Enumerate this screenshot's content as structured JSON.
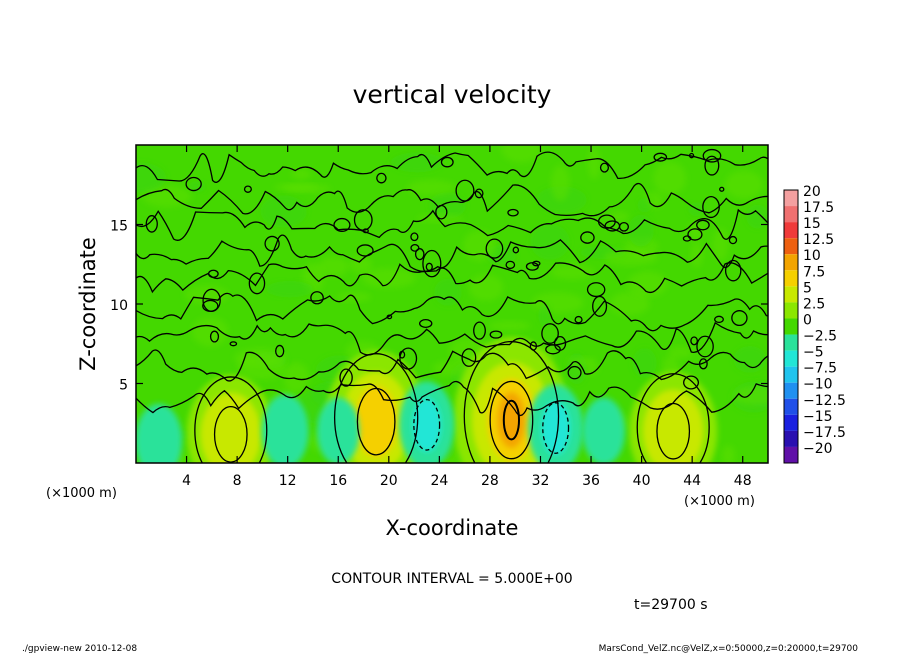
{
  "chart_data": {
    "type": "heatmap",
    "title": "vertical velocity",
    "xlabel": "X-coordinate",
    "ylabel": "Z-coordinate",
    "x_unit": "(×1000 m)",
    "y_unit": "(×1000 m)",
    "xlim": [
      0,
      50
    ],
    "ylim": [
      0,
      20
    ],
    "x_ticks": [
      4,
      8,
      12,
      16,
      20,
      24,
      28,
      32,
      36,
      40,
      44,
      48
    ],
    "y_ticks": [
      5,
      10,
      15
    ],
    "contour_interval_label": "CONTOUR INTERVAL = 5.000E+00",
    "time_label": "t=29700 s",
    "colorbar": {
      "labels": [
        "20",
        "17.5",
        "15",
        "12.5",
        "10",
        "7.5",
        "5",
        "2.5",
        "0",
        "−2.5",
        "−5",
        "−7.5",
        "−10",
        "−12.5",
        "−15",
        "−17.5",
        "−20"
      ],
      "colors": [
        "#f4a0a0",
        "#f07070",
        "#f03a3a",
        "#ee6010",
        "#f3a400",
        "#f5d000",
        "#c8e800",
        "#8be600",
        "#44d800",
        "#2ae29a",
        "#22e6d6",
        "#20c4ee",
        "#2090f0",
        "#2050e8",
        "#1a20e0",
        "#2a10b0",
        "#6010a8"
      ]
    },
    "features": [
      {
        "kind": "updraft",
        "x": 7.5,
        "z": 1.8,
        "w": 6
      },
      {
        "kind": "updraft",
        "x": 19.0,
        "z": 2.6,
        "w": 9
      },
      {
        "kind": "updraft",
        "x": 29.7,
        "z": 2.7,
        "w": 12
      },
      {
        "kind": "updraft",
        "x": 42.5,
        "z": 2.0,
        "w": 6
      },
      {
        "kind": "downdraft",
        "x": 1.8,
        "z": 1.4,
        "w": -4
      },
      {
        "kind": "downdraft",
        "x": 11.8,
        "z": 2.0,
        "w": -4
      },
      {
        "kind": "downdraft",
        "x": 16.0,
        "z": 2.0,
        "w": -3
      },
      {
        "kind": "downdraft",
        "x": 23.0,
        "z": 2.4,
        "w": -6
      },
      {
        "kind": "downdraft",
        "x": 33.2,
        "z": 2.2,
        "w": -6
      },
      {
        "kind": "downdraft",
        "x": 37.0,
        "z": 2.0,
        "w": -3
      }
    ]
  },
  "footer": {
    "left": "./gpview-new  2010-12-08",
    "right": "MarsCond_VelZ.nc@VelZ,x=0:50000,z=0:20000,t=29700"
  }
}
